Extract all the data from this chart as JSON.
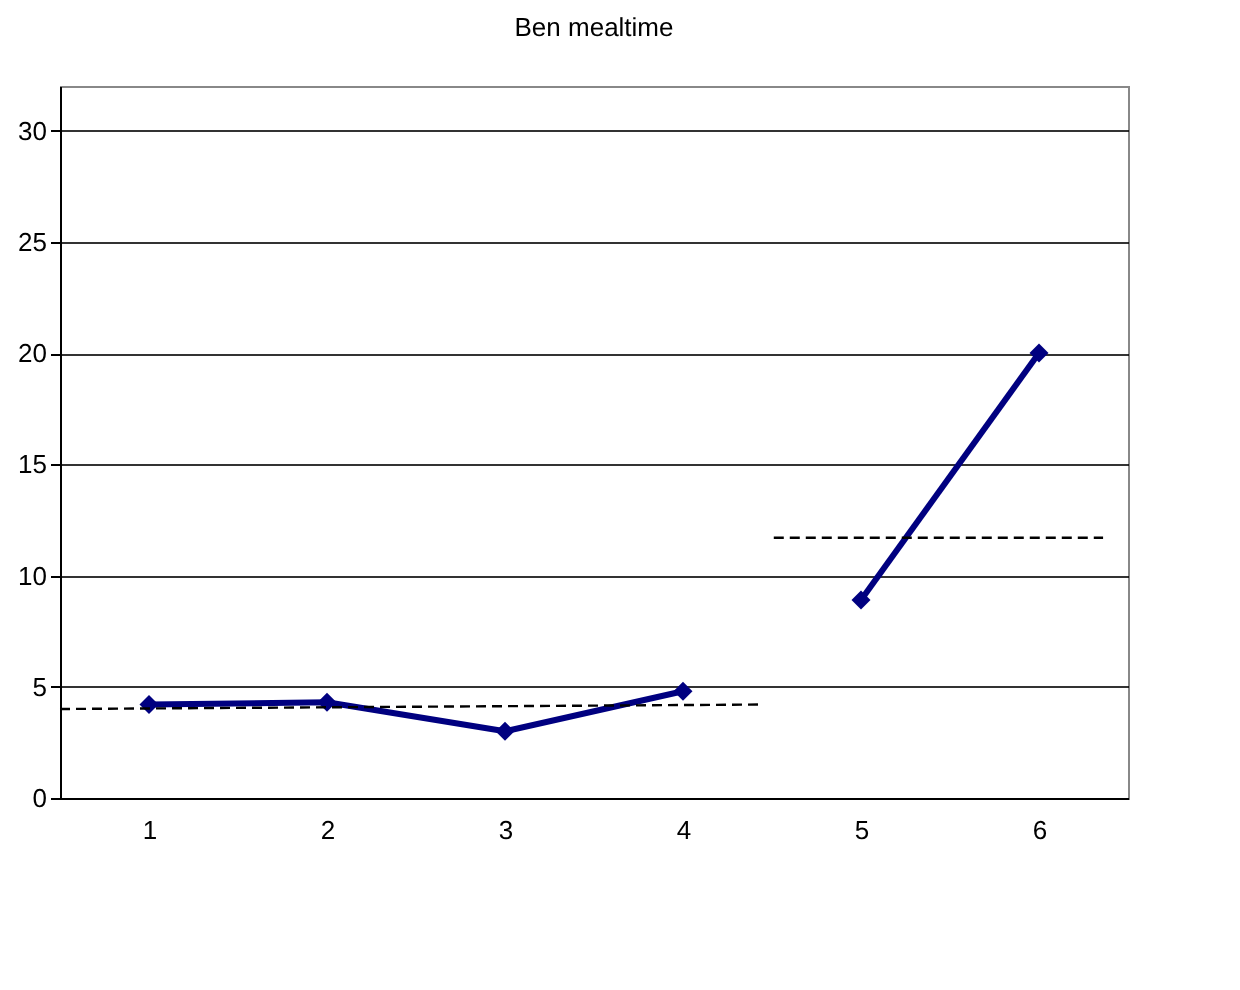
{
  "chart_data": {
    "type": "line",
    "title": "Ben mealtime",
    "xlim": [
      0.5,
      6.5
    ],
    "xticks": [
      1,
      2,
      3,
      4,
      5,
      6
    ],
    "ylim": [
      0,
      32
    ],
    "yticks": [
      0,
      5,
      10,
      15,
      20,
      25,
      30
    ],
    "grid": "y",
    "marker": "diamond",
    "line_style": "solid",
    "series": [
      {
        "color": "#000080",
        "x": [
          1,
          2,
          3,
          4
        ],
        "values": [
          4.2,
          4.3,
          3.0,
          4.8
        ]
      },
      {
        "color": "#000080",
        "x": [
          5,
          6
        ],
        "values": [
          8.9,
          20
        ]
      },
      {
        "type": "line",
        "color": "#000000",
        "marker": "none",
        "line_style": "dashed",
        "x": [
          0.5,
          4.43
        ],
        "values": [
          4.0,
          4.2
        ]
      },
      {
        "type": "line",
        "color": "#000000",
        "marker": "none",
        "line_style": "dashed",
        "x": [
          4.51,
          6.36
        ],
        "values": [
          11.7,
          11.7
        ]
      }
    ]
  }
}
